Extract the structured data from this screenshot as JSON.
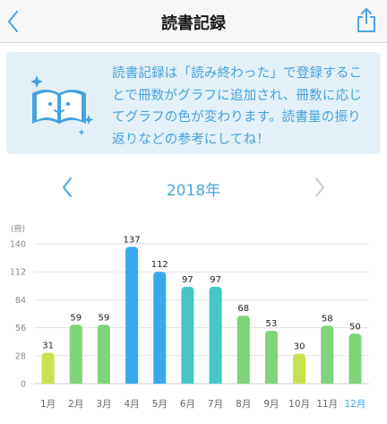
{
  "nav": {
    "title": "読書記録",
    "back_icon": "chevron-left-icon",
    "share_icon": "share-icon"
  },
  "info": {
    "text": "読書記録は「読み終わった」で登録することで冊数がグラフに追加され、冊数に応じてグラフの色が変わります。読書量の振り返りなどの参考にしてね！",
    "icon": "smiling-book-icon"
  },
  "year": {
    "label": "2018年",
    "prev_icon": "chevron-left-icon",
    "next_icon": "chevron-right-icon"
  },
  "colors": {
    "accent": "#4aa6e0",
    "card_bg": "#e4f0f7",
    "bar_low": "#c6e24e",
    "bar_mid": "#7fd37a",
    "bar_high": "#45c8c4",
    "bar_top": "#3aa8ee",
    "selected_month": "#3aa8ee"
  },
  "chart_data": {
    "type": "bar",
    "unit_label": "(冊)",
    "categories": [
      "1月",
      "2月",
      "3月",
      "4月",
      "5月",
      "6月",
      "7月",
      "8月",
      "9月",
      "10月",
      "11月",
      "12月"
    ],
    "values": [
      31,
      59,
      59,
      137,
      112,
      97,
      97,
      68,
      53,
      30,
      58,
      50
    ],
    "yticks": [
      0,
      28,
      56,
      84,
      112,
      140
    ],
    "ylim": [
      0,
      140
    ],
    "selected_category": "12月",
    "grid": true
  }
}
